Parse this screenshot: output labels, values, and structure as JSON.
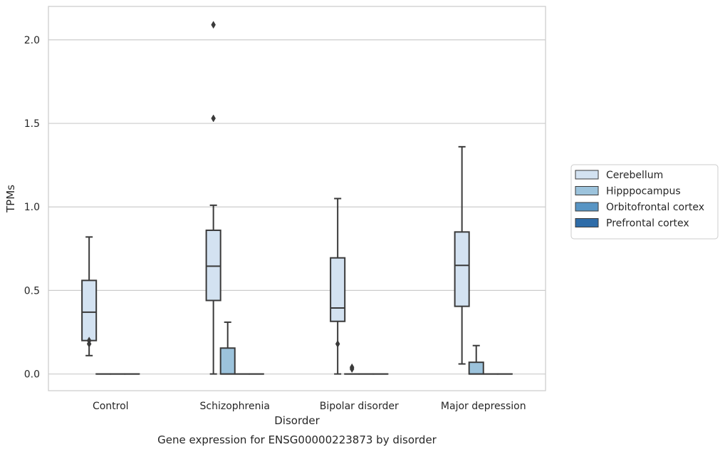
{
  "chart_data": {
    "type": "box",
    "title": "Gene expression for ENSG00000223873 by disorder",
    "xlabel": "Disorder",
    "ylabel": "TPMs",
    "ylim": [
      -0.1,
      2.2
    ],
    "yticks": [
      "0.0",
      "0.5",
      "1.0",
      "1.5",
      "2.0"
    ],
    "categories": [
      "Control",
      "Schizophrenia",
      "Bipolar disorder",
      "Major depression"
    ],
    "grid": true,
    "legend_position": "right",
    "series": [
      {
        "name": "Cerebellum",
        "color": "#d3e2f1",
        "boxes": [
          {
            "min": 0.11,
            "q1": 0.2,
            "median": 0.37,
            "q3": 0.56,
            "max": 0.82,
            "outliers": [
              0.18,
              0.2
            ]
          },
          {
            "min": 0.0,
            "q1": 0.44,
            "median": 0.645,
            "q3": 0.86,
            "max": 1.01,
            "outliers": [
              1.53,
              2.09
            ]
          },
          {
            "min": 0.0,
            "q1": 0.315,
            "median": 0.395,
            "q3": 0.695,
            "max": 1.05,
            "outliers": [
              0.18
            ]
          },
          {
            "min": 0.06,
            "q1": 0.405,
            "median": 0.65,
            "q3": 0.85,
            "max": 1.36,
            "outliers": []
          }
        ]
      },
      {
        "name": "Hipppocampus",
        "color": "#9cc3dc",
        "boxes": [
          {
            "min": 0.0,
            "q1": 0.0,
            "median": 0.0,
            "q3": 0.0,
            "max": 0.0,
            "outliers": []
          },
          {
            "min": 0.0,
            "q1": 0.0,
            "median": 0.0,
            "q3": 0.155,
            "max": 0.31,
            "outliers": []
          },
          {
            "min": 0.0,
            "q1": 0.0,
            "median": 0.0,
            "q3": 0.0,
            "max": 0.0,
            "outliers": [
              0.03,
              0.04
            ]
          },
          {
            "min": 0.0,
            "q1": 0.0,
            "median": 0.0,
            "q3": 0.07,
            "max": 0.17,
            "outliers": []
          }
        ]
      },
      {
        "name": "Orbitofrontal cortex",
        "color": "#5895c4",
        "boxes": [
          {
            "min": 0.0,
            "q1": 0.0,
            "median": 0.0,
            "q3": 0.0,
            "max": 0.0,
            "outliers": []
          },
          {
            "min": 0.0,
            "q1": 0.0,
            "median": 0.0,
            "q3": 0.0,
            "max": 0.0,
            "outliers": []
          },
          {
            "min": 0.0,
            "q1": 0.0,
            "median": 0.0,
            "q3": 0.0,
            "max": 0.0,
            "outliers": []
          },
          {
            "min": 0.0,
            "q1": 0.0,
            "median": 0.0,
            "q3": 0.0,
            "max": 0.0,
            "outliers": []
          }
        ]
      },
      {
        "name": "Prefrontal cortex",
        "color": "#2e6ca8",
        "boxes": [
          {
            "min": 0.0,
            "q1": 0.0,
            "median": 0.0,
            "q3": 0.0,
            "max": 0.0,
            "outliers": []
          },
          {
            "min": 0.0,
            "q1": 0.0,
            "median": 0.0,
            "q3": 0.0,
            "max": 0.0,
            "outliers": []
          },
          {
            "min": 0.0,
            "q1": 0.0,
            "median": 0.0,
            "q3": 0.0,
            "max": 0.0,
            "outliers": []
          },
          {
            "min": 0.0,
            "q1": 0.0,
            "median": 0.0,
            "q3": 0.0,
            "max": 0.0,
            "outliers": []
          }
        ]
      }
    ]
  }
}
